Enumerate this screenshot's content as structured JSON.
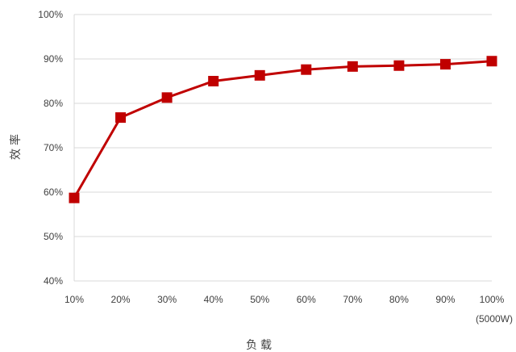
{
  "chart_data": {
    "type": "line",
    "categories": [
      "10%",
      "20%",
      "30%",
      "40%",
      "50%",
      "60%",
      "70%",
      "80%",
      "90%",
      "100%"
    ],
    "series": [
      {
        "values": [
          58.7,
          76.8,
          81.3,
          85.0,
          86.3,
          87.6,
          88.3,
          88.5,
          88.8,
          89.5
        ]
      }
    ],
    "ylim": [
      40,
      100
    ],
    "yticks": [
      "40%",
      "50%",
      "60%",
      "70%",
      "80%",
      "90%",
      "100%"
    ],
    "ytick_values": [
      40,
      50,
      60,
      70,
      80,
      90,
      100
    ],
    "xlabel": "负载",
    "ylabel": "效率",
    "x_note": "(5000W)",
    "grid": true,
    "line_color": "#c00000",
    "grid_color": "#d9d9d9"
  }
}
